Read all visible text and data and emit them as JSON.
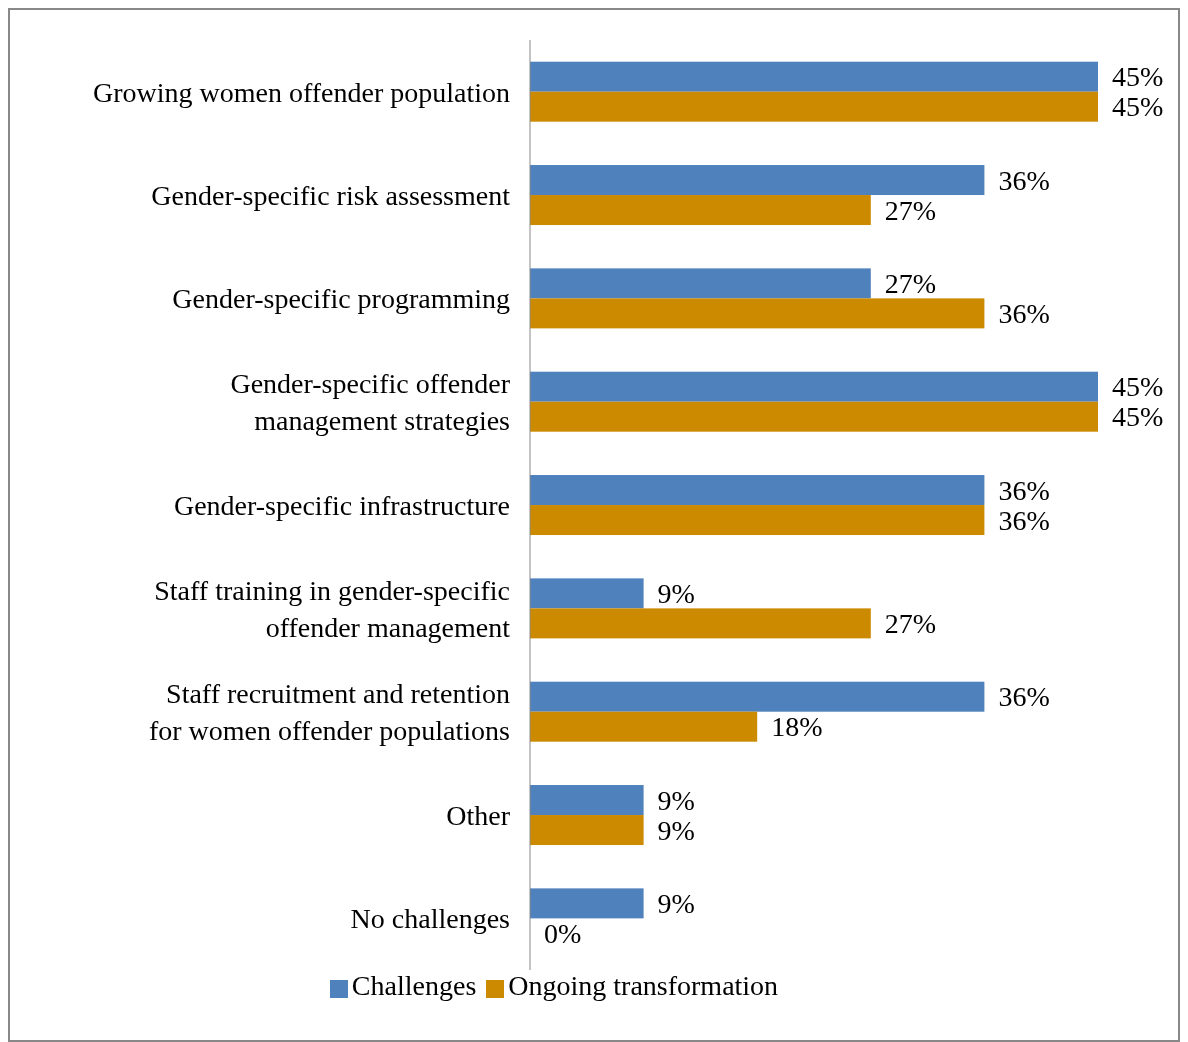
{
  "chart_data": {
    "type": "bar",
    "orientation": "horizontal",
    "categories": [
      "Growing women offender population",
      "Gender-specific risk assessment",
      "Gender-specific programming",
      "Gender-specific offender\nmanagement strategies",
      "Gender-specific infrastructure",
      "Staff training in gender-specific\noffender management",
      "Staff recruitment and retention\nfor women offender populations",
      "Other",
      "No challenges"
    ],
    "series": [
      {
        "name": "Challenges",
        "color": "#4f81bd",
        "values": [
          45,
          36,
          27,
          45,
          36,
          9,
          36,
          9,
          9
        ],
        "value_labels": [
          "45%",
          "36%",
          "27%",
          "45%",
          "36%",
          "9%",
          "36%",
          "9%",
          "9%"
        ]
      },
      {
        "name": "Ongoing transformation",
        "color": "#cc8a00",
        "values": [
          45,
          27,
          36,
          45,
          36,
          27,
          18,
          9,
          0
        ],
        "value_labels": [
          "45%",
          "27%",
          "36%",
          "45%",
          "36%",
          "27%",
          "18%",
          "9%",
          "0%"
        ]
      }
    ],
    "legend": "bottom"
  }
}
